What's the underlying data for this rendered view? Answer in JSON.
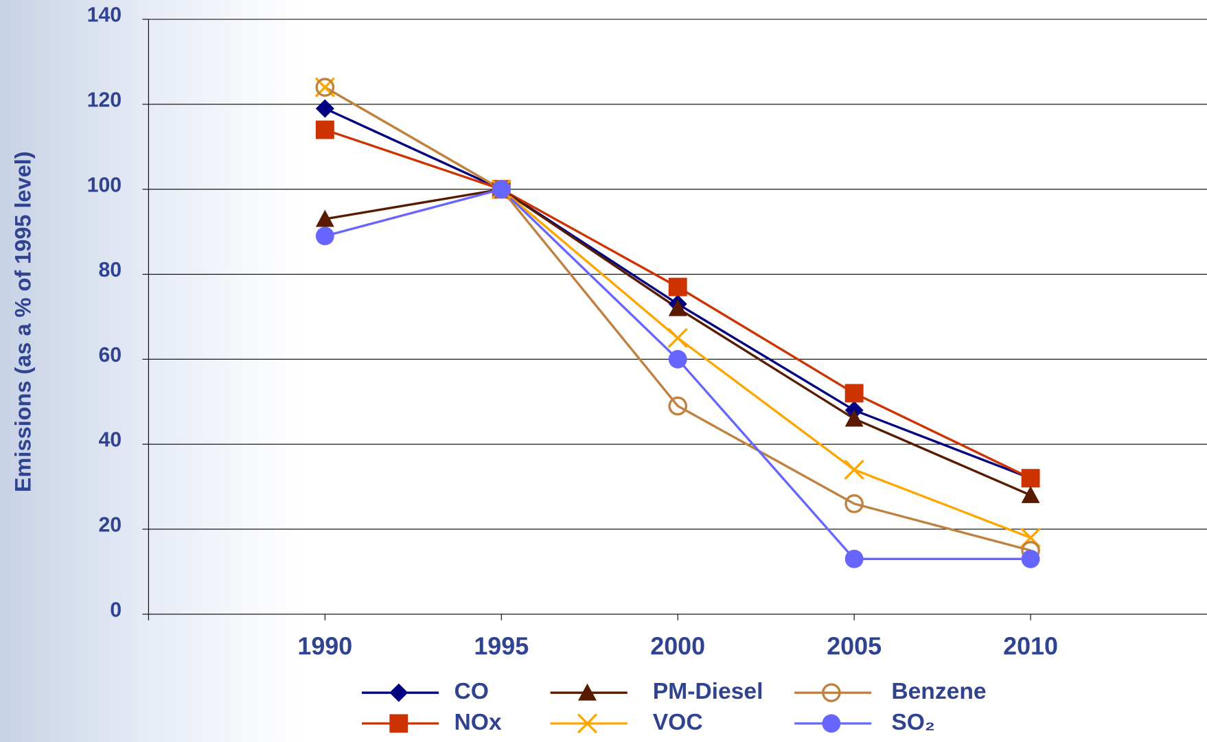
{
  "chart_data": {
    "type": "line",
    "y_label": "Emissions (as a % of 1995 level)",
    "x": [
      1990,
      1995,
      2000,
      2005,
      2010
    ],
    "xlim": [
      1985,
      2015
    ],
    "xticks": [
      1990,
      1995,
      2000,
      2005,
      2010
    ],
    "ylim": [
      0,
      140
    ],
    "yticks": [
      0,
      20,
      40,
      60,
      80,
      100,
      120,
      140
    ],
    "grid": true,
    "series": [
      {
        "name": "CO",
        "color": "#000080",
        "marker": "diamond",
        "values": [
          119,
          100,
          73,
          48,
          32
        ]
      },
      {
        "name": "NOx",
        "color": "#cc3300",
        "marker": "square",
        "values": [
          114,
          100,
          77,
          52,
          32
        ]
      },
      {
        "name": "PM-Diesel",
        "color": "#5a1a00",
        "marker": "triangle",
        "values": [
          93,
          100,
          72,
          46,
          28
        ]
      },
      {
        "name": "VOC",
        "color": "#ffa500",
        "marker": "x",
        "values": [
          124,
          100,
          65,
          34,
          18
        ]
      },
      {
        "name": "Benzene",
        "color": "#c08040",
        "marker": "open-circle",
        "values": [
          124,
          100,
          49,
          26,
          15
        ]
      },
      {
        "name": "SO₂",
        "color": "#6666ff",
        "marker": "circle",
        "values": [
          89,
          100,
          60,
          13,
          13
        ]
      }
    ]
  }
}
